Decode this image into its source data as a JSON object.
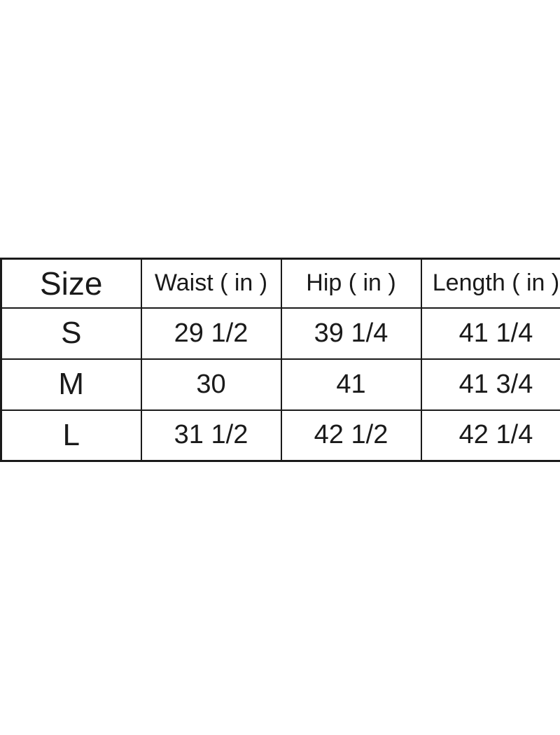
{
  "page": {
    "background_color": "#ffffff",
    "text_color": "#1a1a1a",
    "border_color": "#1a1a1a"
  },
  "table": {
    "columns": [
      "Size",
      "Waist ( in )",
      "Hip ( in )",
      "Length ( in )"
    ],
    "rows": [
      {
        "size": "S",
        "waist": "29 1/2",
        "hip": "39 1/4",
        "length": "41 1/4"
      },
      {
        "size": "M",
        "waist": "30",
        "hip": "41",
        "length": "41 3/4"
      },
      {
        "size": "L",
        "waist": "31 1/2",
        "hip": "42 1/2",
        "length": "42 1/4"
      }
    ]
  },
  "chart_data": {
    "type": "table",
    "title": "",
    "columns": [
      "Size",
      "Waist ( in )",
      "Hip ( in )",
      "Length ( in )"
    ],
    "rows": [
      [
        "S",
        "29 1/2",
        "39 1/4",
        "41 1/4"
      ],
      [
        "M",
        "30",
        "41",
        "41 3/4"
      ],
      [
        "L",
        "31 1/2",
        "42 1/2",
        "42 1/4"
      ]
    ],
    "rows_numeric": [
      [
        29.5,
        39.25,
        41.25
      ],
      [
        30,
        41,
        41.75
      ],
      [
        31.5,
        42.5,
        42.25
      ]
    ],
    "unit": "in",
    "layout_hints": {
      "grid": "full borders",
      "right_edge_clipped": true,
      "header_row": true
    }
  }
}
